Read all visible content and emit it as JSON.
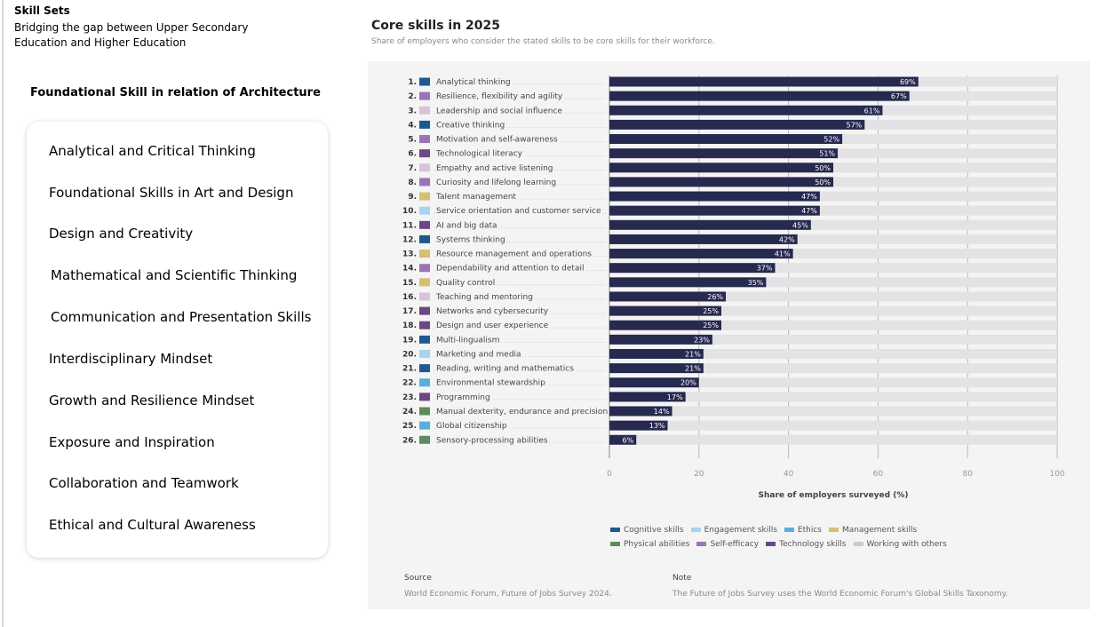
{
  "header": {
    "title": "Skill Sets",
    "subtitle_line1": "Bridging the gap between Upper Secondary",
    "subtitle_line2": "Education and Higher Education"
  },
  "foundational": {
    "title": "Foundational Skill in relation of Architecture",
    "items": [
      "Analytical and Critical Thinking",
      "Foundational Skills in Art and Design",
      "Design and Creativity",
      "Mathematical and Scientific Thinking",
      "Communication and Presentation Skills",
      "Interdisciplinary Mindset",
      "Growth and Resilience Mindset",
      "Exposure and Inspiration",
      "Collaboration and Teamwork",
      "Ethical and Cultural Awareness"
    ]
  },
  "chart_data": {
    "type": "bar",
    "orientation": "horizontal",
    "title": "Core skills in 2025",
    "subtitle": "Share of employers who consider the stated skills to be core skills for their workforce.",
    "xlabel": "Share of employers surveyed (%)",
    "xlim": [
      0,
      100
    ],
    "xticks": [
      0,
      20,
      40,
      60,
      80,
      100
    ],
    "grid": true,
    "categories": [
      "Analytical thinking",
      "Resilience, flexibility and agility",
      "Leadership and social influence",
      "Creative thinking",
      "Motivation and self-awareness",
      "Technological literacy",
      "Empathy and active listening",
      "Curiosity and lifelong learning",
      "Talent management",
      "Service orientation and customer service",
      "AI and big data",
      "Systems thinking",
      "Resource management and operations",
      "Dependability and attention to detail",
      "Quality control",
      "Teaching and mentoring",
      "Networks and cybersecurity",
      "Design and user experience",
      "Multi-lingualism",
      "Marketing and media",
      "Reading, writing and mathematics",
      "Environmental stewardship",
      "Programming",
      "Manual dexterity, endurance and precision",
      "Global citizenship",
      "Sensory-processing abilities"
    ],
    "values": [
      69,
      67,
      61,
      57,
      52,
      51,
      50,
      50,
      47,
      47,
      45,
      42,
      41,
      37,
      35,
      26,
      25,
      25,
      23,
      21,
      21,
      20,
      17,
      14,
      13,
      6
    ],
    "skill_groups": [
      "Cognitive skills",
      "Self-efficacy",
      "Working with others",
      "Cognitive skills",
      "Self-efficacy",
      "Technology skills",
      "Working with others",
      "Self-efficacy",
      "Management skills",
      "Engagement skills",
      "Technology skills",
      "Cognitive skills",
      "Management skills",
      "Self-efficacy",
      "Management skills",
      "Working with others",
      "Technology skills",
      "Technology skills",
      "Cognitive skills",
      "Engagement skills",
      "Cognitive skills",
      "Ethics",
      "Technology skills",
      "Physical abilities",
      "Ethics",
      "Physical abilities"
    ],
    "bar_color": "#262a4f",
    "track_color": "#e3e3e6",
    "legend": [
      {
        "name": "Cognitive skills",
        "color": "#1f5a8e"
      },
      {
        "name": "Engagement skills",
        "color": "#a9d3ee"
      },
      {
        "name": "Ethics",
        "color": "#5aaedb"
      },
      {
        "name": "Management skills",
        "color": "#d6bf6f"
      },
      {
        "name": "Physical abilities",
        "color": "#5e8a5e"
      },
      {
        "name": "Self-efficacy",
        "color": "#9b74b6"
      },
      {
        "name": "Technology skills",
        "color": "#6b4783"
      },
      {
        "name": "Working with others",
        "color": "#d8c3dc"
      }
    ],
    "source_label": "Source",
    "source_text": "World Economic Forum, Future of Jobs Survey 2024.",
    "note_label": "Note",
    "note_text": "The Future of Jobs Survey uses the World Economic Forum's Global Skills Taxonomy."
  }
}
